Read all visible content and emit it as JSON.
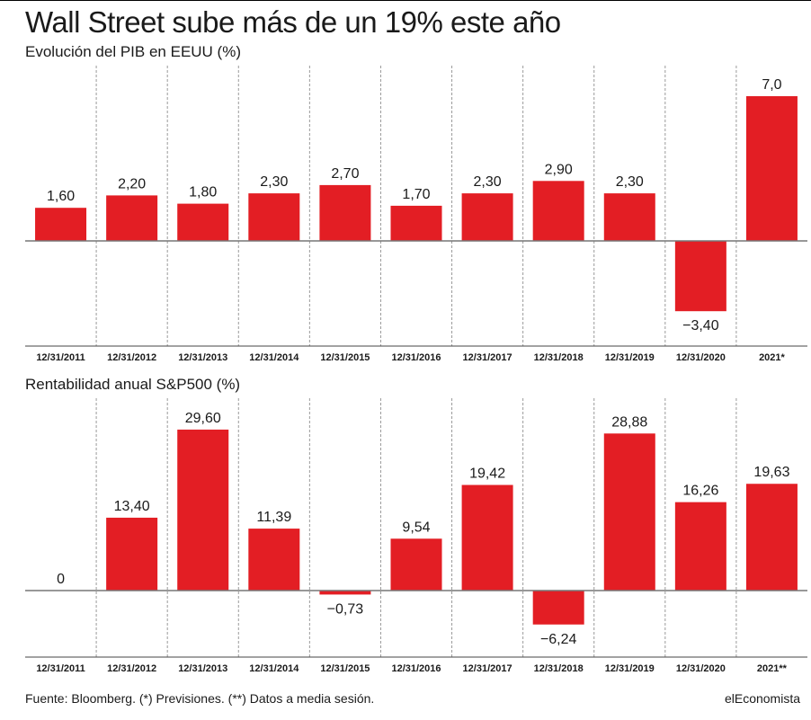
{
  "header": {
    "title": "Wall Street sube más de un 19% este año"
  },
  "footer": {
    "source": "Fuente: Bloomberg. (*) Previsiones. (**) Datos a media sesión.",
    "brand": "elEconomista"
  },
  "colors": {
    "bar": "#e31e24",
    "grid": "#9a9a9a",
    "baseline": "#777777",
    "text": "#1a1a1a"
  },
  "chart_data": [
    {
      "type": "bar",
      "title": "Evolución del PIB en EEUU (%)",
      "categories": [
        "12/31/2011",
        "12/31/2012",
        "12/31/2013",
        "12/31/2014",
        "12/31/2015",
        "12/31/2016",
        "12/31/2017",
        "12/31/2018",
        "12/31/2019",
        "12/31/2020",
        "2021*"
      ],
      "values": [
        1.6,
        2.2,
        1.8,
        2.3,
        2.7,
        1.7,
        2.3,
        2.9,
        2.3,
        -3.4,
        7.0
      ],
      "labels": [
        "1,60",
        "2,20",
        "1,80",
        "2,30",
        "2,70",
        "1,70",
        "2,30",
        "2,90",
        "2,30",
        "−3,40",
        "7,0"
      ],
      "grid": true
    },
    {
      "type": "bar",
      "title": "Rentabilidad anual S&P500 (%)",
      "categories": [
        "12/31/2011",
        "12/31/2012",
        "12/31/2013",
        "12/31/2014",
        "12/31/2015",
        "12/31/2016",
        "12/31/2017",
        "12/31/2018",
        "12/31/2019",
        "12/31/2020",
        "2021**"
      ],
      "values": [
        0,
        13.4,
        29.6,
        11.39,
        -0.73,
        9.54,
        19.42,
        -6.24,
        28.88,
        16.26,
        19.63
      ],
      "labels": [
        "0",
        "13,40",
        "29,60",
        "11,39",
        "−0,73",
        "9,54",
        "19,42",
        "−6,24",
        "28,88",
        "16,26",
        "19,63"
      ],
      "grid": true
    }
  ]
}
